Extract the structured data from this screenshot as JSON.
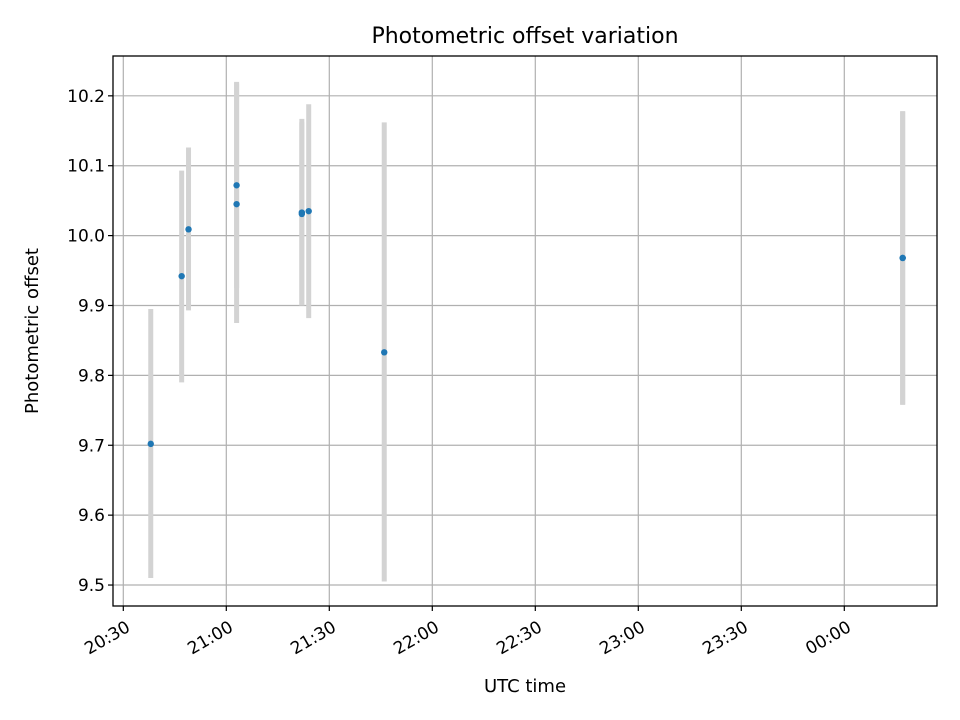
{
  "chart_data": {
    "type": "scatter",
    "title": "Photometric offset variation",
    "xlabel": "UTC time",
    "ylabel": "Photometric offset",
    "x_ticks": [
      "20:30",
      "21:00",
      "21:30",
      "22:00",
      "22:30",
      "23:00",
      "23:30",
      "00:00"
    ],
    "y_ticks": [
      "9.5",
      "9.6",
      "9.7",
      "9.8",
      "9.9",
      "10.0",
      "10.1",
      "10.2"
    ],
    "xlim": [
      "20:27",
      "00:27"
    ],
    "ylim": [
      9.47,
      10.257
    ],
    "grid": true,
    "colors": {
      "point": "#1f77b4",
      "errorbar": "#d3d3d3",
      "grid": "#b0b0b0"
    },
    "points": [
      {
        "x": "20:38",
        "y": 9.702,
        "yerr_low": 9.51,
        "yerr_high": 9.895
      },
      {
        "x": "20:47",
        "y": 9.942,
        "yerr_low": 9.79,
        "yerr_high": 10.093
      },
      {
        "x": "20:49",
        "y": 10.009,
        "yerr_low": 9.893,
        "yerr_high": 10.126
      },
      {
        "x": "21:03",
        "y": 10.072,
        "yerr_low": 9.925,
        "yerr_high": 10.22
      },
      {
        "x": "21:03",
        "y": 10.045,
        "yerr_low": 9.875,
        "yerr_high": 10.218
      },
      {
        "x": "21:22",
        "y": 10.033,
        "yerr_low": 9.9,
        "yerr_high": 10.167
      },
      {
        "x": "21:22",
        "y": 10.031,
        "yerr_low": 9.9,
        "yerr_high": 10.162
      },
      {
        "x": "21:24",
        "y": 10.035,
        "yerr_low": 9.882,
        "yerr_high": 10.188
      },
      {
        "x": "21:46",
        "y": 9.833,
        "yerr_low": 9.505,
        "yerr_high": 10.162
      },
      {
        "x": "00:17",
        "y": 9.968,
        "yerr_low": 9.758,
        "yerr_high": 10.178
      },
      {
        "x": "00:17",
        "y": 9.968,
        "yerr_low": 9.758,
        "yerr_high": 10.178
      }
    ]
  }
}
